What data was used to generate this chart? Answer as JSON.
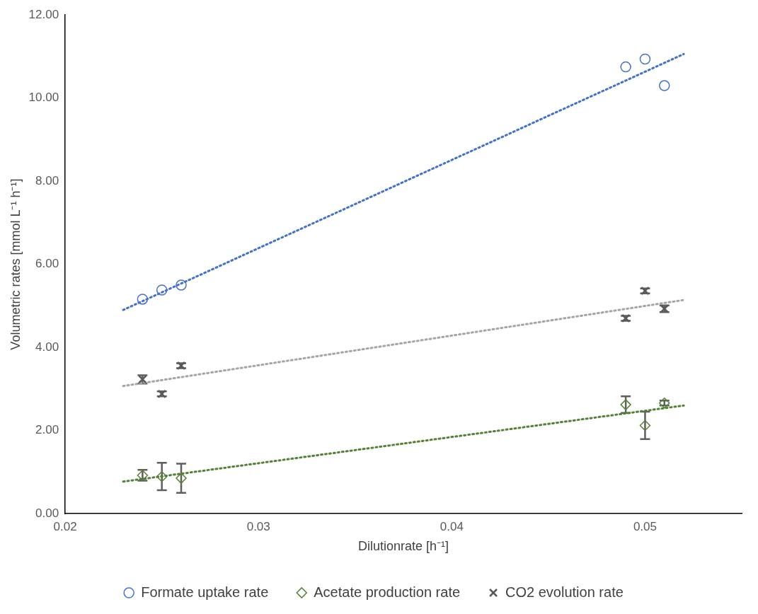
{
  "chart_data": {
    "type": "scatter",
    "xlabel": "Dilutionrate [h⁻¹]",
    "ylabel": "Volumetric rates [mmol L⁻¹ h⁻¹]",
    "xlim": [
      0.02,
      0.055
    ],
    "xticks": [
      0.02,
      0.03,
      0.04,
      0.05
    ],
    "ylim": [
      0,
      12
    ],
    "yticks": [
      {
        "value": 0,
        "label": "0.00"
      },
      {
        "value": 2,
        "label": "2.00"
      },
      {
        "value": 4,
        "label": "4.00"
      },
      {
        "value": 6,
        "label": "6.00"
      },
      {
        "value": 8,
        "label": "8.00"
      },
      {
        "value": 10,
        "label": "10.00"
      },
      {
        "value": 12,
        "label": "12.00"
      }
    ],
    "grid": false,
    "legend": "bottom",
    "series": [
      {
        "name": "Formate uptake rate",
        "color": "#4472c4",
        "marker": "circle",
        "x": [
          0.024,
          0.025,
          0.026,
          0.049,
          0.05,
          0.051
        ],
        "values": [
          5.16,
          5.38,
          5.5,
          10.75,
          10.94,
          10.3
        ]
      },
      {
        "name": "Acetate production rate",
        "color": "#548235",
        "marker": "diamond",
        "x": [
          0.024,
          0.025,
          0.026,
          0.049,
          0.05,
          0.051
        ],
        "values": [
          0.92,
          0.89,
          0.85,
          2.62,
          2.12,
          2.66
        ],
        "errors": [
          0.13,
          0.33,
          0.35,
          0.2,
          0.33,
          0.06
        ]
      },
      {
        "name": "CO2 evolution rate",
        "color": "#595959",
        "marker": "cross",
        "x": [
          0.024,
          0.025,
          0.026,
          0.049,
          0.05,
          0.051
        ],
        "values": [
          3.23,
          2.88,
          3.56,
          4.7,
          5.36,
          4.93
        ],
        "errors": [
          0.1,
          0.06,
          0.06,
          0.06,
          0.06,
          0.08
        ]
      },
      {
        "type": "line",
        "color": "#4472c4",
        "line_style": "dotted",
        "marker": "none",
        "x": [
          0.023,
          0.052
        ],
        "values": [
          4.9,
          11.06
        ]
      },
      {
        "type": "line",
        "color": "#a5a5a5",
        "line_style": "dotted",
        "marker": "none",
        "x": [
          0.023,
          0.052
        ],
        "values": [
          3.07,
          5.14
        ]
      },
      {
        "type": "line",
        "color": "#548235",
        "line_style": "dotted",
        "marker": "none",
        "x": [
          0.023,
          0.052
        ],
        "values": [
          0.77,
          2.6
        ]
      }
    ]
  }
}
